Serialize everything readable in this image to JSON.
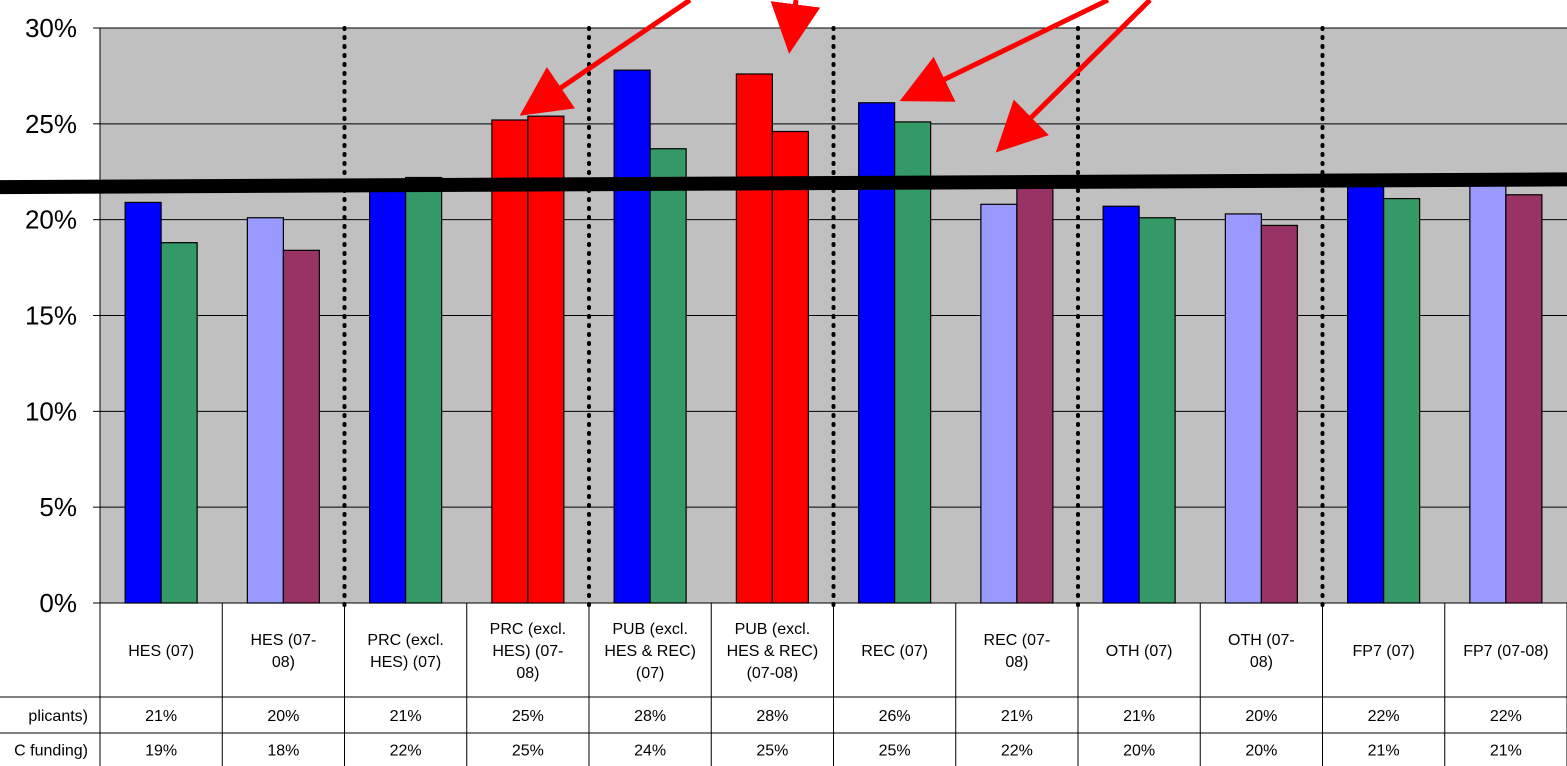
{
  "chart_data": {
    "type": "bar",
    "ylim": [
      0,
      30
    ],
    "y_ticks": [
      "0%",
      "5%",
      "10%",
      "15%",
      "20%",
      "25%",
      "30%"
    ],
    "grid": true,
    "categories": [
      "HES (07)",
      "HES (07-08)",
      "PRC (excl. HES) (07)",
      "PRC (excl. HES) (07-08)",
      "PUB (excl. HES & REC) (07)",
      "PUB (excl. HES & REC) (07-08)",
      "REC (07)",
      "REC (07-08)",
      "OTH (07)",
      "OTH (07-08)",
      "FP7 (07)",
      "FP7 (07-08)"
    ],
    "category_lines": [
      [
        "HES (07)"
      ],
      [
        "HES (07-",
        "08)"
      ],
      [
        "PRC (excl.",
        "HES) (07)"
      ],
      [
        "PRC (excl.",
        "HES) (07-",
        "08)"
      ],
      [
        "PUB (excl.",
        "HES & REC)",
        "(07)"
      ],
      [
        "PUB (excl.",
        "HES & REC)",
        "(07-08)"
      ],
      [
        "REC (07)"
      ],
      [
        "REC (07-",
        "08)"
      ],
      [
        "OTH (07)"
      ],
      [
        "OTH (07-",
        "08)"
      ],
      [
        "FP7 (07)"
      ],
      [
        "FP7 (07-08)"
      ]
    ],
    "series": [
      {
        "row_label": "plicants)",
        "values": [
          20.9,
          20.1,
          21.5,
          25.2,
          27.8,
          27.6,
          26.1,
          20.8,
          20.7,
          20.3,
          22.3,
          21.8
        ],
        "table_values": [
          "21%",
          "20%",
          "21%",
          "25%",
          "28%",
          "28%",
          "26%",
          "21%",
          "21%",
          "20%",
          "22%",
          "22%"
        ]
      },
      {
        "row_label": "C funding)",
        "values": [
          18.8,
          18.4,
          22.2,
          25.4,
          23.7,
          24.6,
          25.1,
          22.2,
          20.1,
          19.7,
          21.1,
          21.3
        ],
        "table_values": [
          "19%",
          "18%",
          "22%",
          "25%",
          "24%",
          "25%",
          "25%",
          "22%",
          "20%",
          "20%",
          "21%",
          "21%"
        ]
      }
    ],
    "bar_colors": [
      [
        "#0000ff",
        "#339966"
      ],
      [
        "#9999ff",
        "#993366"
      ],
      [
        "#0000ff",
        "#339966"
      ],
      [
        "#ff0000",
        "#ff0000"
      ],
      [
        "#0000ff",
        "#339966"
      ],
      [
        "#ff0000",
        "#ff0000"
      ],
      [
        "#0000ff",
        "#339966"
      ],
      [
        "#9999ff",
        "#993366"
      ],
      [
        "#0000ff",
        "#339966"
      ],
      [
        "#9999ff",
        "#993366"
      ],
      [
        "#0000ff",
        "#339966"
      ],
      [
        "#9999ff",
        "#993366"
      ]
    ],
    "average_line": {
      "start": 21.7,
      "end": 22.1,
      "color": "#000000"
    },
    "dotted_separators_after_category": [
      2,
      4,
      6,
      8,
      10
    ],
    "arrow_color": "#ff0000",
    "arrow_targets": [
      "PRC (excl. HES) (07-08)",
      "PUB (excl. HES & REC) (07-08)",
      "REC (07)",
      "REC (07-08)"
    ],
    "plot_background": "#c0c0c0"
  }
}
